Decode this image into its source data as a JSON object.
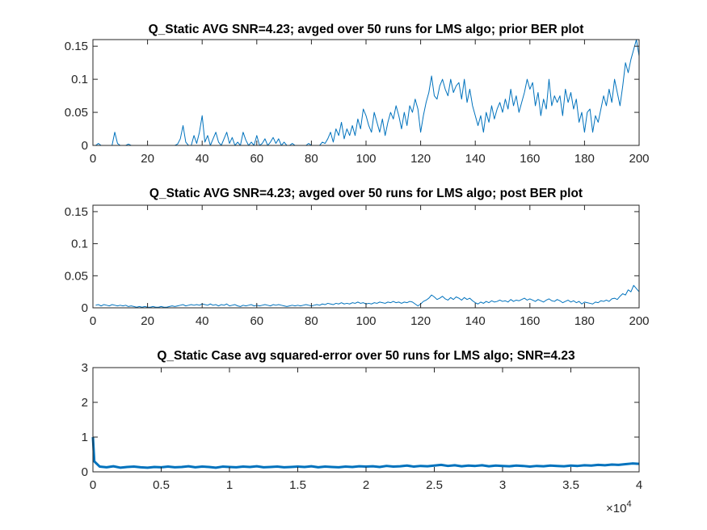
{
  "chart_data": [
    {
      "type": "line",
      "title": "Q_Static AVG SNR=4.23; avged over 50 runs for LMS algo; prior BER plot",
      "x": [
        1,
        2,
        3,
        4,
        5,
        6,
        7,
        8,
        9,
        10,
        11,
        12,
        13,
        14,
        15,
        16,
        17,
        18,
        19,
        20,
        21,
        22,
        23,
        24,
        25,
        26,
        27,
        28,
        29,
        30,
        31,
        32,
        33,
        34,
        35,
        36,
        37,
        38,
        39,
        40,
        41,
        42,
        43,
        44,
        45,
        46,
        47,
        48,
        49,
        50,
        51,
        52,
        53,
        54,
        55,
        56,
        57,
        58,
        59,
        60,
        61,
        62,
        63,
        64,
        65,
        66,
        67,
        68,
        69,
        70,
        71,
        72,
        73,
        74,
        75,
        76,
        77,
        78,
        79,
        80,
        81,
        82,
        83,
        84,
        85,
        86,
        87,
        88,
        89,
        90,
        91,
        92,
        93,
        94,
        95,
        96,
        97,
        98,
        99,
        100,
        101,
        102,
        103,
        104,
        105,
        106,
        107,
        108,
        109,
        110,
        111,
        112,
        113,
        114,
        115,
        116,
        117,
        118,
        119,
        120,
        121,
        122,
        123,
        124,
        125,
        126,
        127,
        128,
        129,
        130,
        131,
        132,
        133,
        134,
        135,
        136,
        137,
        138,
        139,
        140,
        141,
        142,
        143,
        144,
        145,
        146,
        147,
        148,
        149,
        150,
        151,
        152,
        153,
        154,
        155,
        156,
        157,
        158,
        159,
        160,
        161,
        162,
        163,
        164,
        165,
        166,
        167,
        168,
        169,
        170,
        171,
        172,
        173,
        174,
        175,
        176,
        177,
        178,
        179,
        180,
        181,
        182,
        183,
        184,
        185,
        186,
        187,
        188,
        189,
        190,
        191,
        192,
        193,
        194,
        195,
        196,
        197,
        198,
        199,
        200
      ],
      "series": [
        {
          "color": "#0072bd",
          "values": [
            0,
            0.003,
            0,
            0,
            0,
            0,
            0,
            0.02,
            0.003,
            0,
            0,
            0,
            0.002,
            0,
            0,
            0,
            0,
            0,
            0,
            0,
            0,
            0,
            0,
            0,
            0,
            0,
            0,
            0,
            0,
            0,
            0.002,
            0.01,
            0.03,
            0.005,
            0,
            0,
            0.015,
            0.003,
            0.02,
            0.045,
            0.005,
            0.015,
            0,
            0.01,
            0.02,
            0.005,
            0,
            0.01,
            0.02,
            0.003,
            0.012,
            0,
            0.005,
            0,
            0.02,
            0.008,
            0,
            0.005,
            0,
            0.015,
            0,
            0.003,
            0.01,
            0,
            0.005,
            0.012,
            0.003,
            0.01,
            0,
            0.005,
            0,
            0,
            0.003,
            0,
            0,
            0,
            0,
            0,
            0.003,
            0,
            0,
            0,
            0,
            0.005,
            0.003,
            0.01,
            0.02,
            0.005,
            0.025,
            0.015,
            0.035,
            0.01,
            0.025,
            0.015,
            0.03,
            0.015,
            0.04,
            0.025,
            0.055,
            0.045,
            0.03,
            0.02,
            0.05,
            0.035,
            0.02,
            0.04,
            0.015,
            0.035,
            0.05,
            0.04,
            0.06,
            0.045,
            0.025,
            0.05,
            0.03,
            0.06,
            0.05,
            0.07,
            0.055,
            0.02,
            0.045,
            0.065,
            0.08,
            0.105,
            0.075,
            0.07,
            0.09,
            0.1,
            0.085,
            0.075,
            0.1,
            0.08,
            0.09,
            0.095,
            0.07,
            0.1,
            0.065,
            0.085,
            0.06,
            0.045,
            0.03,
            0.045,
            0.02,
            0.05,
            0.035,
            0.06,
            0.04,
            0.055,
            0.065,
            0.05,
            0.07,
            0.055,
            0.085,
            0.06,
            0.075,
            0.05,
            0.065,
            0.08,
            0.1,
            0.085,
            0.095,
            0.06,
            0.08,
            0.045,
            0.07,
            0.055,
            0.1,
            0.06,
            0.075,
            0.065,
            0.075,
            0.045,
            0.085,
            0.065,
            0.08,
            0.055,
            0.07,
            0.035,
            0.05,
            0.02,
            0.05,
            0.055,
            0.02,
            0.045,
            0.035,
            0.055,
            0.075,
            0.06,
            0.085,
            0.065,
            0.1,
            0.08,
            0.06,
            0.09,
            0.125,
            0.11,
            0.13,
            0.145,
            0.16,
            0.135
          ]
        }
      ],
      "xlim": [
        0,
        200
      ],
      "xticks": [
        0,
        20,
        40,
        60,
        80,
        100,
        120,
        140,
        160,
        180,
        200
      ],
      "ylim": [
        0,
        0.16
      ],
      "yticks": [
        0,
        0.05,
        0.1,
        0.15
      ]
    },
    {
      "type": "line",
      "title": "Q_Static AVG SNR=4.23; avged over 50 runs for LMS algo; post BER plot",
      "x": [
        1,
        2,
        3,
        4,
        5,
        6,
        7,
        8,
        9,
        10,
        11,
        12,
        13,
        14,
        15,
        16,
        17,
        18,
        19,
        20,
        21,
        22,
        23,
        24,
        25,
        26,
        27,
        28,
        29,
        30,
        31,
        32,
        33,
        34,
        35,
        36,
        37,
        38,
        39,
        40,
        41,
        42,
        43,
        44,
        45,
        46,
        47,
        48,
        49,
        50,
        51,
        52,
        53,
        54,
        55,
        56,
        57,
        58,
        59,
        60,
        61,
        62,
        63,
        64,
        65,
        66,
        67,
        68,
        69,
        70,
        71,
        72,
        73,
        74,
        75,
        76,
        77,
        78,
        79,
        80,
        81,
        82,
        83,
        84,
        85,
        86,
        87,
        88,
        89,
        90,
        91,
        92,
        93,
        94,
        95,
        96,
        97,
        98,
        99,
        100,
        101,
        102,
        103,
        104,
        105,
        106,
        107,
        108,
        109,
        110,
        111,
        112,
        113,
        114,
        115,
        116,
        117,
        118,
        119,
        120,
        121,
        122,
        123,
        124,
        125,
        126,
        127,
        128,
        129,
        130,
        131,
        132,
        133,
        134,
        135,
        136,
        137,
        138,
        139,
        140,
        141,
        142,
        143,
        144,
        145,
        146,
        147,
        148,
        149,
        150,
        151,
        152,
        153,
        154,
        155,
        156,
        157,
        158,
        159,
        160,
        161,
        162,
        163,
        164,
        165,
        166,
        167,
        168,
        169,
        170,
        171,
        172,
        173,
        174,
        175,
        176,
        177,
        178,
        179,
        180,
        181,
        182,
        183,
        184,
        185,
        186,
        187,
        188,
        189,
        190,
        191,
        192,
        193,
        194,
        195,
        196,
        197,
        198,
        199,
        200
      ],
      "series": [
        {
          "color": "#0072bd",
          "values": [
            0.004,
            0.005,
            0.003,
            0.005,
            0.004,
            0.003,
            0.005,
            0.004,
            0.003,
            0.004,
            0.003,
            0.004,
            0.002,
            0.003,
            0.002,
            0.001,
            0.002,
            0.001,
            0.002,
            0.001,
            0.001,
            0.002,
            0.001,
            0.001,
            0.002,
            0.001,
            0.001,
            0.002,
            0.003,
            0.002,
            0.003,
            0.004,
            0.005,
            0.003,
            0.004,
            0.005,
            0.004,
            0.005,
            0.004,
            0.006,
            0.005,
            0.004,
            0.006,
            0.004,
            0.005,
            0.003,
            0.005,
            0.004,
            0.006,
            0.003,
            0.004,
            0.005,
            0.003,
            0.002,
            0.004,
            0.003,
            0.004,
            0.005,
            0.003,
            0.004,
            0.003,
            0.004,
            0.005,
            0.004,
            0.003,
            0.005,
            0.004,
            0.005,
            0.004,
            0.003,
            0.002,
            0.003,
            0.004,
            0.003,
            0.004,
            0.003,
            0.004,
            0.005,
            0.004,
            0.003,
            0.004,
            0.005,
            0.004,
            0.006,
            0.005,
            0.007,
            0.006,
            0.005,
            0.007,
            0.006,
            0.008,
            0.006,
            0.007,
            0.006,
            0.008,
            0.007,
            0.009,
            0.007,
            0.008,
            0.006,
            0.007,
            0.006,
            0.008,
            0.007,
            0.009,
            0.008,
            0.007,
            0.009,
            0.008,
            0.01,
            0.008,
            0.009,
            0.007,
            0.009,
            0.008,
            0.01,
            0.009,
            0.006,
            0.003,
            0.006,
            0.01,
            0.012,
            0.015,
            0.02,
            0.017,
            0.013,
            0.015,
            0.018,
            0.014,
            0.012,
            0.016,
            0.013,
            0.017,
            0.015,
            0.012,
            0.016,
            0.013,
            0.015,
            0.011,
            0.008,
            0.006,
            0.009,
            0.007,
            0.01,
            0.008,
            0.011,
            0.009,
            0.01,
            0.012,
            0.01,
            0.011,
            0.009,
            0.013,
            0.01,
            0.012,
            0.011,
            0.013,
            0.015,
            0.012,
            0.014,
            0.012,
            0.01,
            0.013,
            0.011,
            0.009,
            0.012,
            0.014,
            0.011,
            0.01,
            0.013,
            0.011,
            0.008,
            0.01,
            0.012,
            0.009,
            0.011,
            0.008,
            0.01,
            0.006,
            0.009,
            0.008,
            0.007,
            0.006,
            0.009,
            0.008,
            0.011,
            0.01,
            0.012,
            0.01,
            0.014,
            0.015,
            0.013,
            0.018,
            0.022,
            0.02,
            0.028,
            0.025,
            0.035,
            0.03,
            0.025
          ]
        }
      ],
      "xlim": [
        0,
        200
      ],
      "xticks": [
        0,
        20,
        40,
        60,
        80,
        100,
        120,
        140,
        160,
        180,
        200
      ],
      "ylim": [
        0,
        0.16
      ],
      "yticks": [
        0,
        0.05,
        0.1,
        0.15
      ]
    },
    {
      "type": "line",
      "title": "Q_Static Case avg squared-error over 50 runs for LMS algo; SNR=4.23",
      "x": [
        0,
        100,
        500,
        1000,
        1500,
        2000,
        2500,
        3000,
        3500,
        4000,
        4500,
        5000,
        5500,
        6000,
        6500,
        7000,
        7500,
        8000,
        8500,
        9000,
        9500,
        10000,
        10500,
        11000,
        11500,
        12000,
        12500,
        13000,
        13500,
        14000,
        14500,
        15000,
        15500,
        16000,
        16500,
        17000,
        17500,
        18000,
        18500,
        19000,
        19500,
        20000,
        20500,
        21000,
        21500,
        22000,
        22500,
        23000,
        23500,
        24000,
        24500,
        25000,
        25500,
        26000,
        26500,
        27000,
        27500,
        28000,
        28500,
        29000,
        29500,
        30000,
        30500,
        31000,
        31500,
        32000,
        32500,
        33000,
        33500,
        34000,
        34500,
        35000,
        35500,
        36000,
        36500,
        37000,
        37500,
        38000,
        38500,
        39000,
        39500,
        40000
      ],
      "series": [
        {
          "color": "#0072bd",
          "values": [
            1.0,
            0.3,
            0.15,
            0.13,
            0.16,
            0.12,
            0.14,
            0.15,
            0.13,
            0.12,
            0.14,
            0.13,
            0.15,
            0.13,
            0.14,
            0.16,
            0.13,
            0.15,
            0.14,
            0.12,
            0.15,
            0.14,
            0.13,
            0.15,
            0.14,
            0.16,
            0.13,
            0.14,
            0.15,
            0.13,
            0.14,
            0.15,
            0.14,
            0.16,
            0.13,
            0.15,
            0.14,
            0.13,
            0.15,
            0.14,
            0.16,
            0.15,
            0.16,
            0.14,
            0.17,
            0.15,
            0.16,
            0.18,
            0.15,
            0.17,
            0.16,
            0.18,
            0.2,
            0.17,
            0.19,
            0.16,
            0.18,
            0.17,
            0.19,
            0.16,
            0.18,
            0.17,
            0.16,
            0.18,
            0.17,
            0.15,
            0.17,
            0.16,
            0.18,
            0.17,
            0.16,
            0.18,
            0.17,
            0.19,
            0.18,
            0.2,
            0.19,
            0.21,
            0.2,
            0.22,
            0.24,
            0.23
          ]
        }
      ],
      "xlim": [
        0,
        40000
      ],
      "xticks": [
        0,
        {
          "value": 5000,
          "label": "0.5"
        },
        {
          "value": 10000,
          "label": "1"
        },
        {
          "value": 15000,
          "label": "1.5"
        },
        {
          "value": 20000,
          "label": "2"
        },
        {
          "value": 25000,
          "label": "2.5"
        },
        {
          "value": 30000,
          "label": "3"
        },
        {
          "value": 35000,
          "label": "3.5"
        },
        {
          "value": 40000,
          "label": "4"
        }
      ],
      "x_multiplier": {
        "base": "×10",
        "power": "4"
      },
      "ylim": [
        0,
        3
      ],
      "yticks": [
        0,
        1,
        2,
        3
      ]
    }
  ]
}
